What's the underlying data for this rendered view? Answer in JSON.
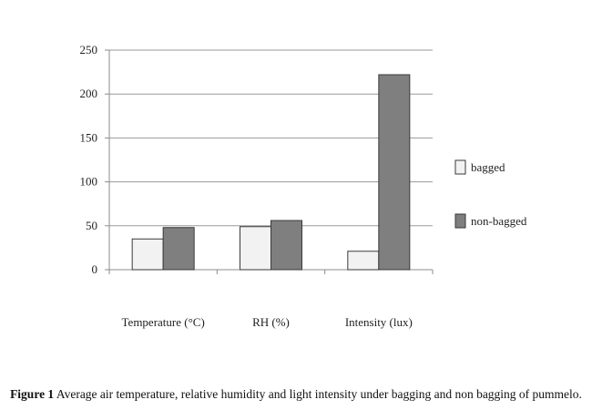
{
  "chart_data": {
    "type": "bar",
    "categories": [
      "Temperature (°C)",
      "RH (%)",
      "Intensity (lux)"
    ],
    "series": [
      {
        "name": "bagged",
        "values": [
          35,
          49,
          21
        ],
        "color": "#f2f2f2"
      },
      {
        "name": "non-bagged",
        "values": [
          48,
          56,
          222
        ],
        "color": "#7f7f7f"
      }
    ],
    "ylim": [
      0,
      250
    ],
    "yticks": [
      0,
      50,
      100,
      150,
      200,
      250
    ],
    "grid": true,
    "legend_position": "right"
  },
  "caption": {
    "label": "Figure 1",
    "text": "Average air temperature, relative humidity and light intensity under bagging and non bagging of pummelo."
  }
}
